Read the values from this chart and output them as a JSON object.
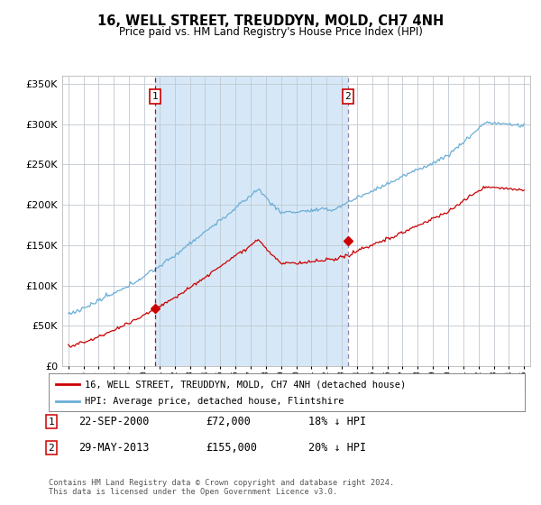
{
  "title": "16, WELL STREET, TREUDDYN, MOLD, CH7 4NH",
  "subtitle": "Price paid vs. HM Land Registry's House Price Index (HPI)",
  "ylim": [
    0,
    360000
  ],
  "yticks": [
    0,
    50000,
    100000,
    150000,
    200000,
    250000,
    300000,
    350000
  ],
  "ytick_labels": [
    "£0",
    "£50K",
    "£100K",
    "£150K",
    "£200K",
    "£250K",
    "£300K",
    "£350K"
  ],
  "plot_bg": "white",
  "shade_color": "#d6e8f7",
  "hpi_color": "#6baed6",
  "sale_color": "#cc0000",
  "sale1_date": 2000.72,
  "sale1_price": 72000,
  "sale2_date": 2013.41,
  "sale2_price": 155000,
  "legend_red_label": "16, WELL STREET, TREUDDYN, MOLD, CH7 4NH (detached house)",
  "legend_blue_label": "HPI: Average price, detached house, Flintshire",
  "footer": "Contains HM Land Registry data © Crown copyright and database right 2024.\nThis data is licensed under the Open Government Licence v3.0.",
  "table_rows": [
    {
      "num": "1",
      "date": "22-SEP-2000",
      "price": "£72,000",
      "pct": "18% ↓ HPI"
    },
    {
      "num": "2",
      "date": "29-MAY-2013",
      "price": "£155,000",
      "pct": "20% ↓ HPI"
    }
  ]
}
